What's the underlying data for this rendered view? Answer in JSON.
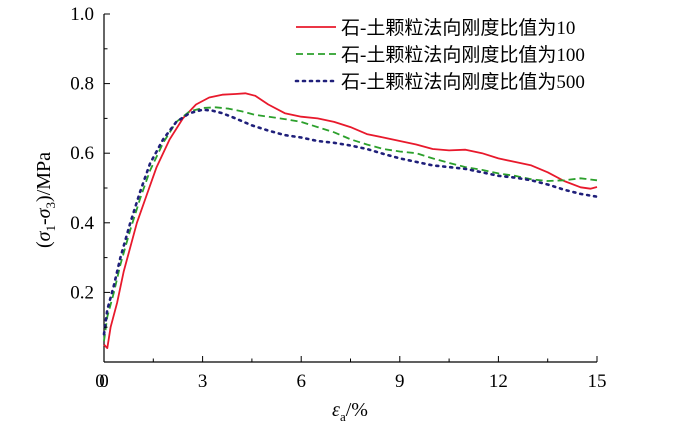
{
  "chart_data": {
    "type": "line",
    "xlabel": {
      "main": "ε",
      "sub": "a",
      "rest": "/%"
    },
    "ylabel": {
      "p1": "(",
      "s1": "σ",
      "sub1": "1",
      "dash": "-",
      "s2": "σ",
      "sub3": "3",
      "p2": ")/MPa"
    },
    "xlim": [
      0,
      15
    ],
    "ylim": [
      0,
      1.0
    ],
    "xticks": [
      0,
      3,
      6,
      9,
      12,
      15
    ],
    "xtick_labels": [
      "0",
      "3",
      "6",
      "9",
      "12",
      "15"
    ],
    "yticks": [
      0.2,
      0.4,
      0.6,
      0.8,
      1.0
    ],
    "ytick_labels": [
      "0.2",
      "0.4",
      "0.6",
      "0.8",
      "1.0"
    ],
    "grid": false,
    "legend_position": "top-right",
    "series": [
      {
        "name": "石-土颗粒法向刚度比值为10",
        "color": "#e8192c",
        "dash": "solid",
        "x": [
          0.0,
          0.1,
          0.2,
          0.4,
          0.6,
          0.8,
          1.0,
          1.3,
          1.6,
          2.0,
          2.4,
          2.8,
          3.2,
          3.6,
          4.0,
          4.3,
          4.6,
          5.0,
          5.5,
          6.0,
          6.5,
          7.0,
          7.5,
          8.0,
          8.5,
          9.0,
          9.5,
          10.0,
          10.5,
          11.0,
          11.5,
          12.0,
          12.5,
          13.0,
          13.5,
          14.0,
          14.5,
          14.8,
          15.0
        ],
        "y": [
          0.05,
          0.04,
          0.1,
          0.17,
          0.26,
          0.33,
          0.4,
          0.48,
          0.56,
          0.64,
          0.7,
          0.74,
          0.76,
          0.768,
          0.77,
          0.772,
          0.765,
          0.74,
          0.715,
          0.705,
          0.7,
          0.69,
          0.675,
          0.655,
          0.645,
          0.635,
          0.625,
          0.612,
          0.608,
          0.61,
          0.6,
          0.585,
          0.575,
          0.565,
          0.545,
          0.52,
          0.502,
          0.498,
          0.503
        ]
      },
      {
        "name": "石-土颗粒法向刚度比值为100",
        "color": "#2ca02c",
        "dash": "dashed",
        "x": [
          0.0,
          0.1,
          0.3,
          0.5,
          0.8,
          1.1,
          1.4,
          1.8,
          2.2,
          2.6,
          3.0,
          3.4,
          3.8,
          4.2,
          4.6,
          5.0,
          5.5,
          6.0,
          6.5,
          7.0,
          7.5,
          8.0,
          8.5,
          9.0,
          9.5,
          10.0,
          10.5,
          11.0,
          11.5,
          12.0,
          12.5,
          13.0,
          13.5,
          14.0,
          14.5,
          15.0
        ],
        "y": [
          0.06,
          0.13,
          0.2,
          0.28,
          0.38,
          0.47,
          0.55,
          0.63,
          0.69,
          0.72,
          0.73,
          0.732,
          0.728,
          0.72,
          0.71,
          0.705,
          0.698,
          0.69,
          0.675,
          0.66,
          0.64,
          0.625,
          0.612,
          0.605,
          0.6,
          0.585,
          0.572,
          0.56,
          0.552,
          0.542,
          0.535,
          0.525,
          0.52,
          0.522,
          0.528,
          0.522
        ]
      },
      {
        "name": "石-土颗粒法向刚度比值为500",
        "color": "#1f1f7a",
        "dash": "dotted",
        "x": [
          0.0,
          0.1,
          0.3,
          0.5,
          0.8,
          1.1,
          1.4,
          1.8,
          2.2,
          2.6,
          3.0,
          3.3,
          3.6,
          4.0,
          4.5,
          5.0,
          5.5,
          6.0,
          6.5,
          7.0,
          7.5,
          8.0,
          8.5,
          9.0,
          9.5,
          10.0,
          10.5,
          11.0,
          11.5,
          12.0,
          12.5,
          13.0,
          13.5,
          14.0,
          14.5,
          15.0
        ],
        "y": [
          0.08,
          0.15,
          0.22,
          0.3,
          0.4,
          0.49,
          0.57,
          0.64,
          0.69,
          0.715,
          0.725,
          0.722,
          0.715,
          0.7,
          0.68,
          0.665,
          0.652,
          0.645,
          0.635,
          0.63,
          0.622,
          0.612,
          0.598,
          0.585,
          0.575,
          0.565,
          0.56,
          0.555,
          0.545,
          0.535,
          0.53,
          0.522,
          0.51,
          0.495,
          0.483,
          0.475
        ]
      }
    ]
  }
}
